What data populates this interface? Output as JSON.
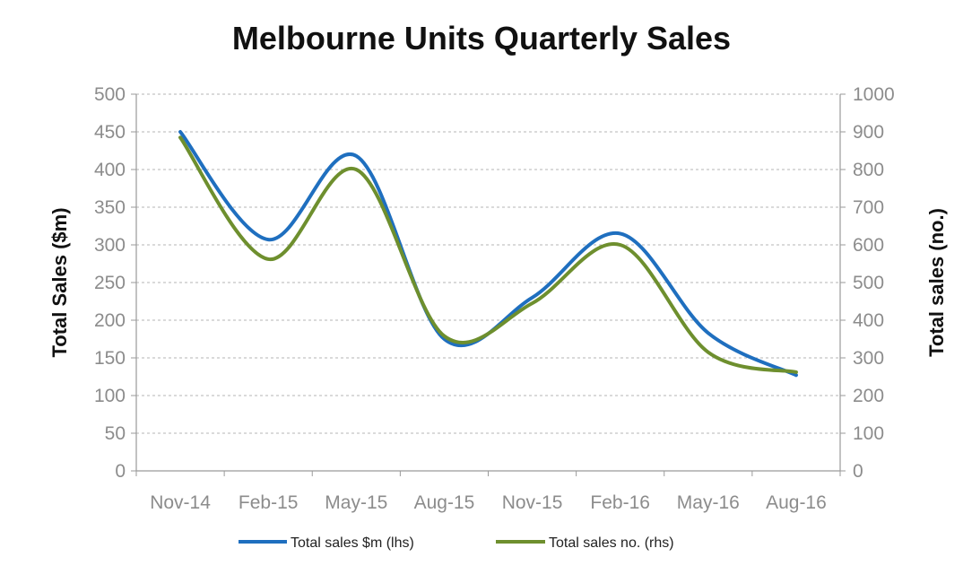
{
  "chart_data": {
    "type": "line",
    "title": "Melbourne Units Quarterly Sales",
    "categories": [
      "Nov-14",
      "Feb-15",
      "May-15",
      "Aug-15",
      "Nov-15",
      "Feb-16",
      "May-16",
      "Aug-16"
    ],
    "ylabel_left": "Total Sales ($m)",
    "ylabel_right": "Total sales (no.)",
    "ylim_left": [
      0,
      500
    ],
    "ylim_right": [
      0,
      1000
    ],
    "yticks_left": [
      "0",
      "50",
      "100",
      "150",
      "200",
      "250",
      "300",
      "350",
      "400",
      "450",
      "500"
    ],
    "yticks_right": [
      "0",
      "100",
      "200",
      "300",
      "400",
      "500",
      "600",
      "700",
      "800",
      "900",
      "1000"
    ],
    "grid": true,
    "legend_position": "bottom",
    "series": [
      {
        "name": "Total sales $m (lhs)",
        "axis": "left",
        "color": "#1f6fbf",
        "values": [
          450,
          307,
          418,
          175,
          230,
          315,
          183,
          127
        ]
      },
      {
        "name": "Total sales no. (rhs)",
        "axis": "right",
        "color": "#6e8f2e",
        "values": [
          885,
          562,
          800,
          358,
          445,
          600,
          315,
          262
        ]
      }
    ]
  }
}
